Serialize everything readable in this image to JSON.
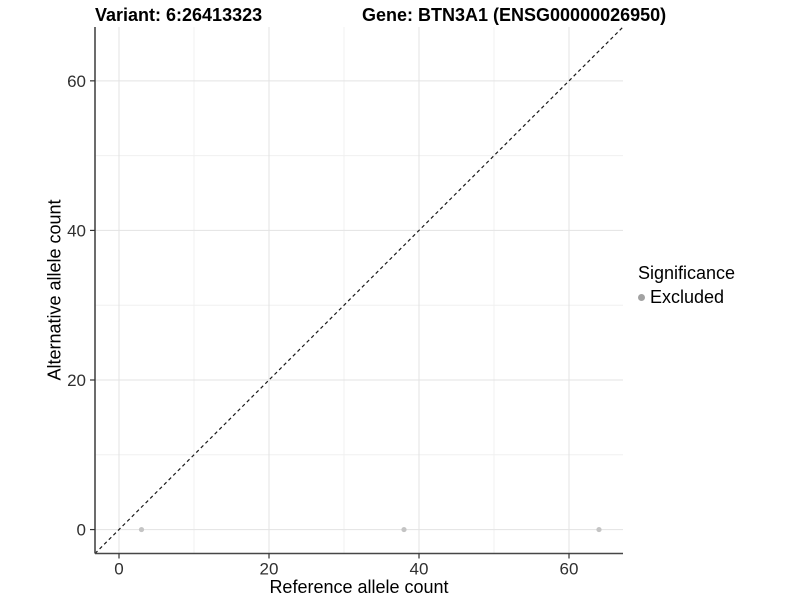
{
  "figure": {
    "title_left": "Variant: 6:26413323",
    "title_right": "Gene: BTN3A1 (ENSG00000026950)",
    "legend": {
      "title": "Significance",
      "items": [
        {
          "label": "Excluded",
          "dot_color": "#a2a2a2"
        }
      ]
    }
  },
  "chart_data": {
    "type": "scatter",
    "title_left": "Variant: 6:26413323",
    "title_right": "Gene: BTN3A1 (ENSG00000026950)",
    "xlabel": "Reference allele count",
    "ylabel": "Alternative allele count",
    "xlim": [
      -3.2,
      67.2
    ],
    "ylim": [
      -3.2,
      67.2
    ],
    "x_ticks": [
      0,
      20,
      40,
      60
    ],
    "y_ticks": [
      0,
      20,
      40,
      60
    ],
    "x_minor_ticks": [
      10,
      30,
      50
    ],
    "y_minor_ticks": [
      10,
      30,
      50
    ],
    "grid": true,
    "legend_position": "right",
    "legend_title": "Significance",
    "series": [
      {
        "name": "Excluded",
        "color": "#c4c4c4",
        "points": [
          {
            "x": 3,
            "y": 0
          },
          {
            "x": 38,
            "y": 0
          },
          {
            "x": 64,
            "y": 0
          }
        ]
      }
    ],
    "reference_line": {
      "type": "identity",
      "slope": 1,
      "intercept": 0,
      "style": "dashed",
      "color": "#1a1a1a"
    },
    "colors": {
      "axis_line": "#474747",
      "tick_mark": "#333333",
      "tick_label": "#303030",
      "grid_major": "#e3e3e3",
      "grid_minor": "#f0f0f0",
      "background": "#ffffff"
    }
  }
}
